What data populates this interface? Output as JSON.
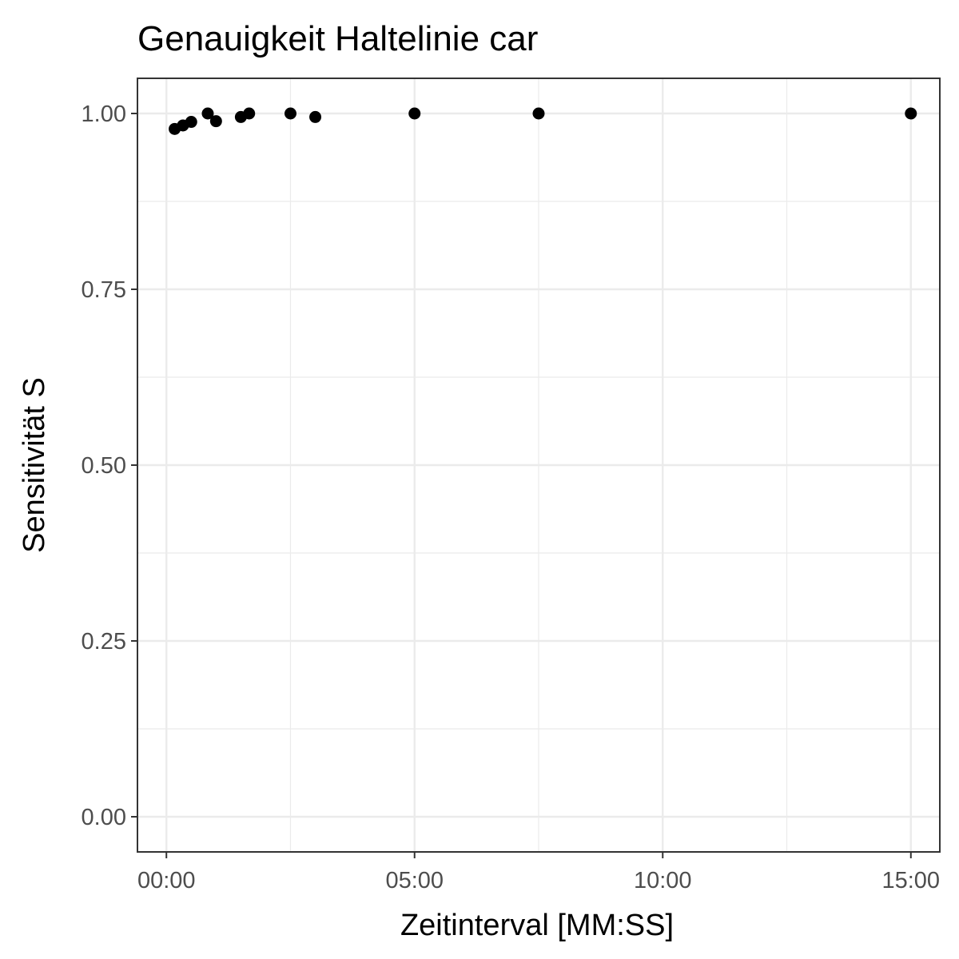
{
  "chart_data": {
    "type": "scatter",
    "title": "Genauigkeit Haltelinie car",
    "xlabel": "Zeitinterval [MM:SS]",
    "ylabel": "Sensitivität S",
    "x_unit": "MM:SS",
    "xlim": [
      "-00:35",
      "15:35"
    ],
    "ylim": [
      -0.05,
      1.05
    ],
    "x_ticks": [
      "00:00",
      "05:00",
      "10:00",
      "15:00"
    ],
    "y_ticks": [
      "0.00",
      "0.25",
      "0.50",
      "0.75",
      "1.00"
    ],
    "grid": true,
    "point_color": "#000000",
    "points": [
      {
        "x": "00:10",
        "y": 0.978
      },
      {
        "x": "00:20",
        "y": 0.983
      },
      {
        "x": "00:30",
        "y": 0.988
      },
      {
        "x": "00:50",
        "y": 1.0
      },
      {
        "x": "01:00",
        "y": 0.989
      },
      {
        "x": "01:30",
        "y": 0.995
      },
      {
        "x": "01:40",
        "y": 1.0
      },
      {
        "x": "02:30",
        "y": 1.0
      },
      {
        "x": "03:00",
        "y": 0.995
      },
      {
        "x": "05:00",
        "y": 1.0
      },
      {
        "x": "07:30",
        "y": 1.0
      },
      {
        "x": "15:00",
        "y": 1.0
      }
    ]
  }
}
